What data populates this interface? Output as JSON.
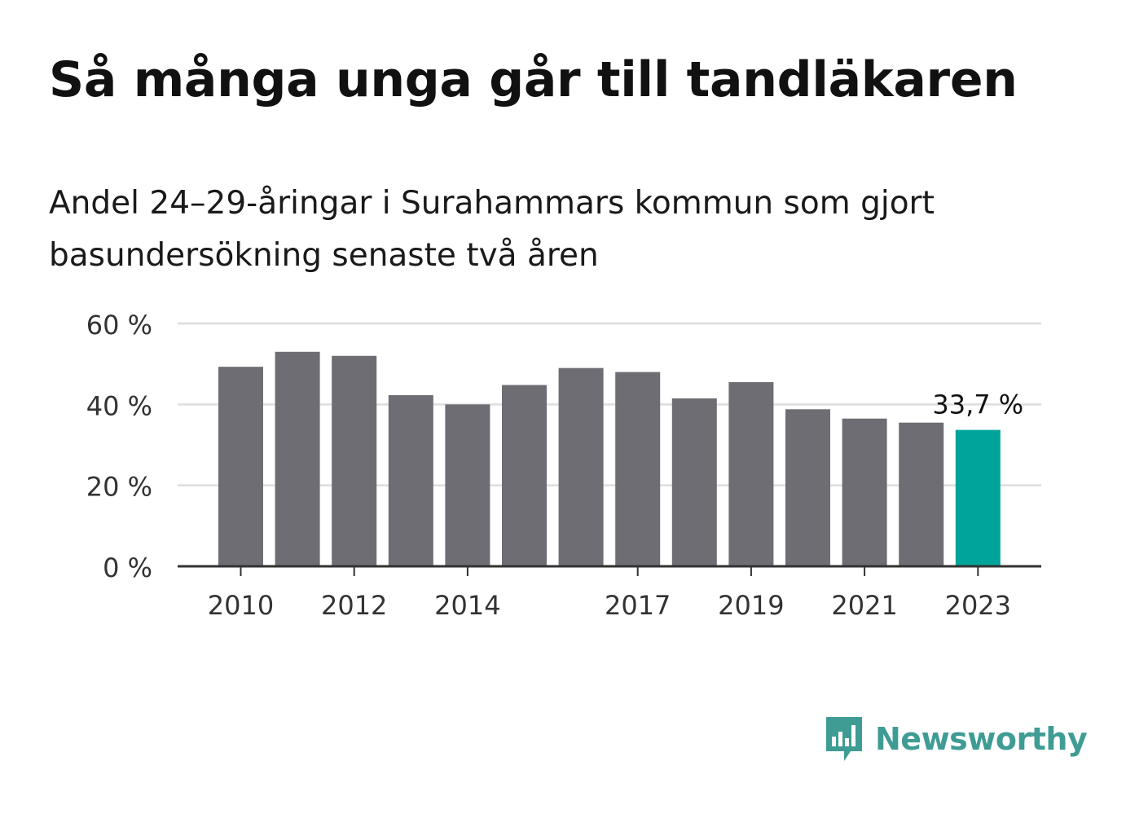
{
  "title": "Så många unga går till tandläkaren",
  "subtitle": "Andel 24–29-åringar i Surahammars kommun som gjort basundersökning senaste två åren",
  "brand": {
    "name": "Newsworthy"
  },
  "colors": {
    "bar": "#6e6d74",
    "highlight": "#00a49a",
    "grid": "#dddddd",
    "axis": "#333333",
    "brand": "#3f9c94"
  },
  "chart_data": {
    "type": "bar",
    "x": [
      2010,
      2011,
      2012,
      2013,
      2014,
      2015,
      2016,
      2017,
      2018,
      2019,
      2020,
      2021,
      2022,
      2023
    ],
    "values": [
      49.3,
      53.0,
      52.0,
      42.3,
      40.0,
      44.8,
      49.0,
      48.0,
      41.5,
      45.5,
      38.8,
      36.5,
      35.5,
      33.7
    ],
    "x_tick_labels": [
      "2010",
      "2012",
      "2014",
      "2017",
      "2019",
      "2021",
      "2023"
    ],
    "y_tick_labels": [
      "0 %",
      "20 %",
      "40 %",
      "60 %"
    ],
    "y_ticks": [
      0,
      20,
      40,
      60
    ],
    "ylim": [
      0,
      60
    ],
    "highlight_index": 13,
    "data_labels": [
      {
        "index": 13,
        "text": "33,7 %"
      }
    ],
    "xlabel": "",
    "ylabel": "",
    "grid": true,
    "legend": false
  }
}
